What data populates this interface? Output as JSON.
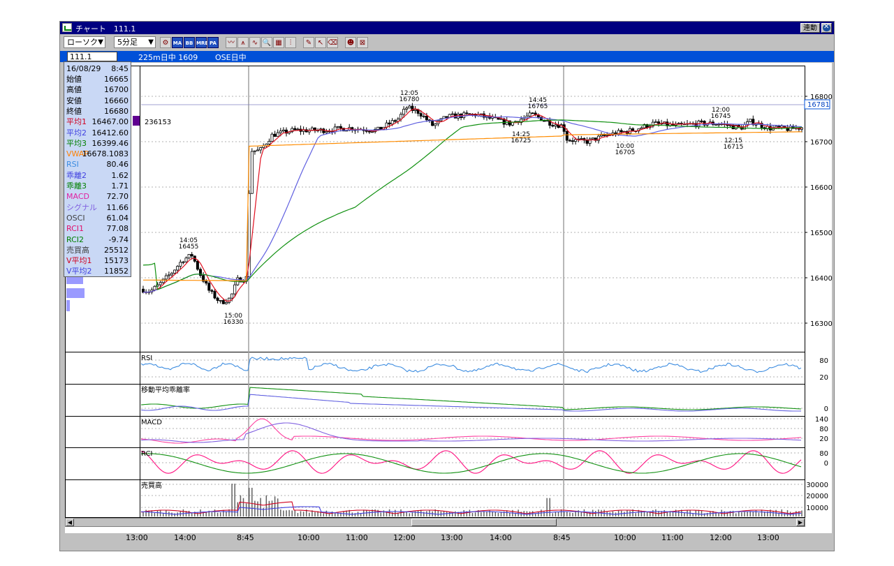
{
  "window": {
    "title": "チャート　111.1",
    "link_button": "連動"
  },
  "toolbar": {
    "chart_type": "ローソク",
    "interval": "5分足",
    "buttons": [
      "chart-settings",
      "MA",
      "BB",
      "MRE",
      "PA",
      "line-tool",
      "candle-tool",
      "wave-tool",
      "zoom-tool",
      "calc-tool",
      "bars-tool",
      "pen-tool",
      "pointer-tool",
      "eraser-tool",
      "search-tool",
      "info-tool"
    ]
  },
  "infobar": {
    "symbol": "111.1",
    "index_info": "225m日中 1609",
    "ose_info": "OSE日中"
  },
  "info_panel": {
    "date": "16/08/29",
    "time": "8:45",
    "rows": [
      {
        "label": "始値",
        "value": "16665",
        "color": "#000000"
      },
      {
        "label": "高値",
        "value": "16700",
        "color": "#000000"
      },
      {
        "label": "安値",
        "value": "16660",
        "color": "#000000"
      },
      {
        "label": "終値",
        "value": "16680",
        "color": "#000000"
      },
      {
        "label": "平均1",
        "value": "16467.00",
        "color": "#d00020"
      },
      {
        "label": "平均2",
        "value": "16412.60",
        "color": "#4040e0"
      },
      {
        "label": "平均3",
        "value": "16399.46",
        "color": "#008000"
      },
      {
        "label": "VWAP",
        "value": "16678.1083",
        "color": "#ff8000"
      },
      {
        "label": "RSI",
        "value": "80.46",
        "color": "#3c8ce0"
      },
      {
        "label": "乖離2",
        "value": "1.62",
        "color": "#4040e0"
      },
      {
        "label": "乖離3",
        "value": "1.71",
        "color": "#008000"
      },
      {
        "label": "MACD",
        "value": "72.70",
        "color": "#e020a0"
      },
      {
        "label": "シグナル",
        "value": "11.66",
        "color": "#8060e0"
      },
      {
        "label": "OSCI",
        "value": "61.04",
        "color": "#404040"
      },
      {
        "label": "RCI1",
        "value": "77.08",
        "color": "#e0106a"
      },
      {
        "label": "RCI2",
        "value": "-9.74",
        "color": "#008000"
      },
      {
        "label": "売買高",
        "value": "25512",
        "color": "#404040"
      },
      {
        "label": "V平均1",
        "value": "15173",
        "color": "#d00020"
      },
      {
        "label": "V平均2",
        "value": "11852",
        "color": "#4040e0"
      }
    ]
  },
  "main_chart": {
    "volume_profile_label": "236153",
    "price_axis": [
      "16800",
      "16700",
      "16600",
      "16500",
      "16400",
      "16300"
    ],
    "current_price": "16781",
    "annotations": [
      {
        "time": "14:05",
        "price": "16455"
      },
      {
        "time": "15:00",
        "price": "16330"
      },
      {
        "time": "12:05",
        "price": "16780"
      },
      {
        "time": "14:45",
        "price": "16765"
      },
      {
        "time": "14:25",
        "price": "16725"
      },
      {
        "time": "10:00",
        "price": "16705"
      },
      {
        "time": "12:00",
        "price": "16745"
      },
      {
        "time": "12:15",
        "price": "16715"
      }
    ]
  },
  "sub_panels": [
    {
      "title": "RSI",
      "axis": [
        "80",
        "20"
      ]
    },
    {
      "title": "移動平均乖離率",
      "axis": [
        "0"
      ]
    },
    {
      "title": "MACD",
      "axis": [
        "140",
        "80",
        "20"
      ]
    },
    {
      "title": "RCI",
      "axis": [
        "80",
        "0"
      ]
    },
    {
      "title": "売買高",
      "axis": [
        "30000",
        "20000",
        "10000"
      ]
    }
  ],
  "time_axis": [
    "13:00",
    "14:00",
    "8:45",
    "10:00",
    "11:00",
    "12:00",
    "13:00",
    "14:00",
    "8:45",
    "10:00",
    "11:00",
    "12:00",
    "13:00"
  ],
  "colors": {
    "titlebar": "#000080",
    "infobar": "#0050d8",
    "ma1": "#e01020",
    "ma2": "#6060e0",
    "ma3": "#109010",
    "vwap": "#ff8c00",
    "rsi": "#3c8ce0",
    "macd": "#ff40a0",
    "rci1": "#ff1080",
    "rci2": "#109010"
  }
}
